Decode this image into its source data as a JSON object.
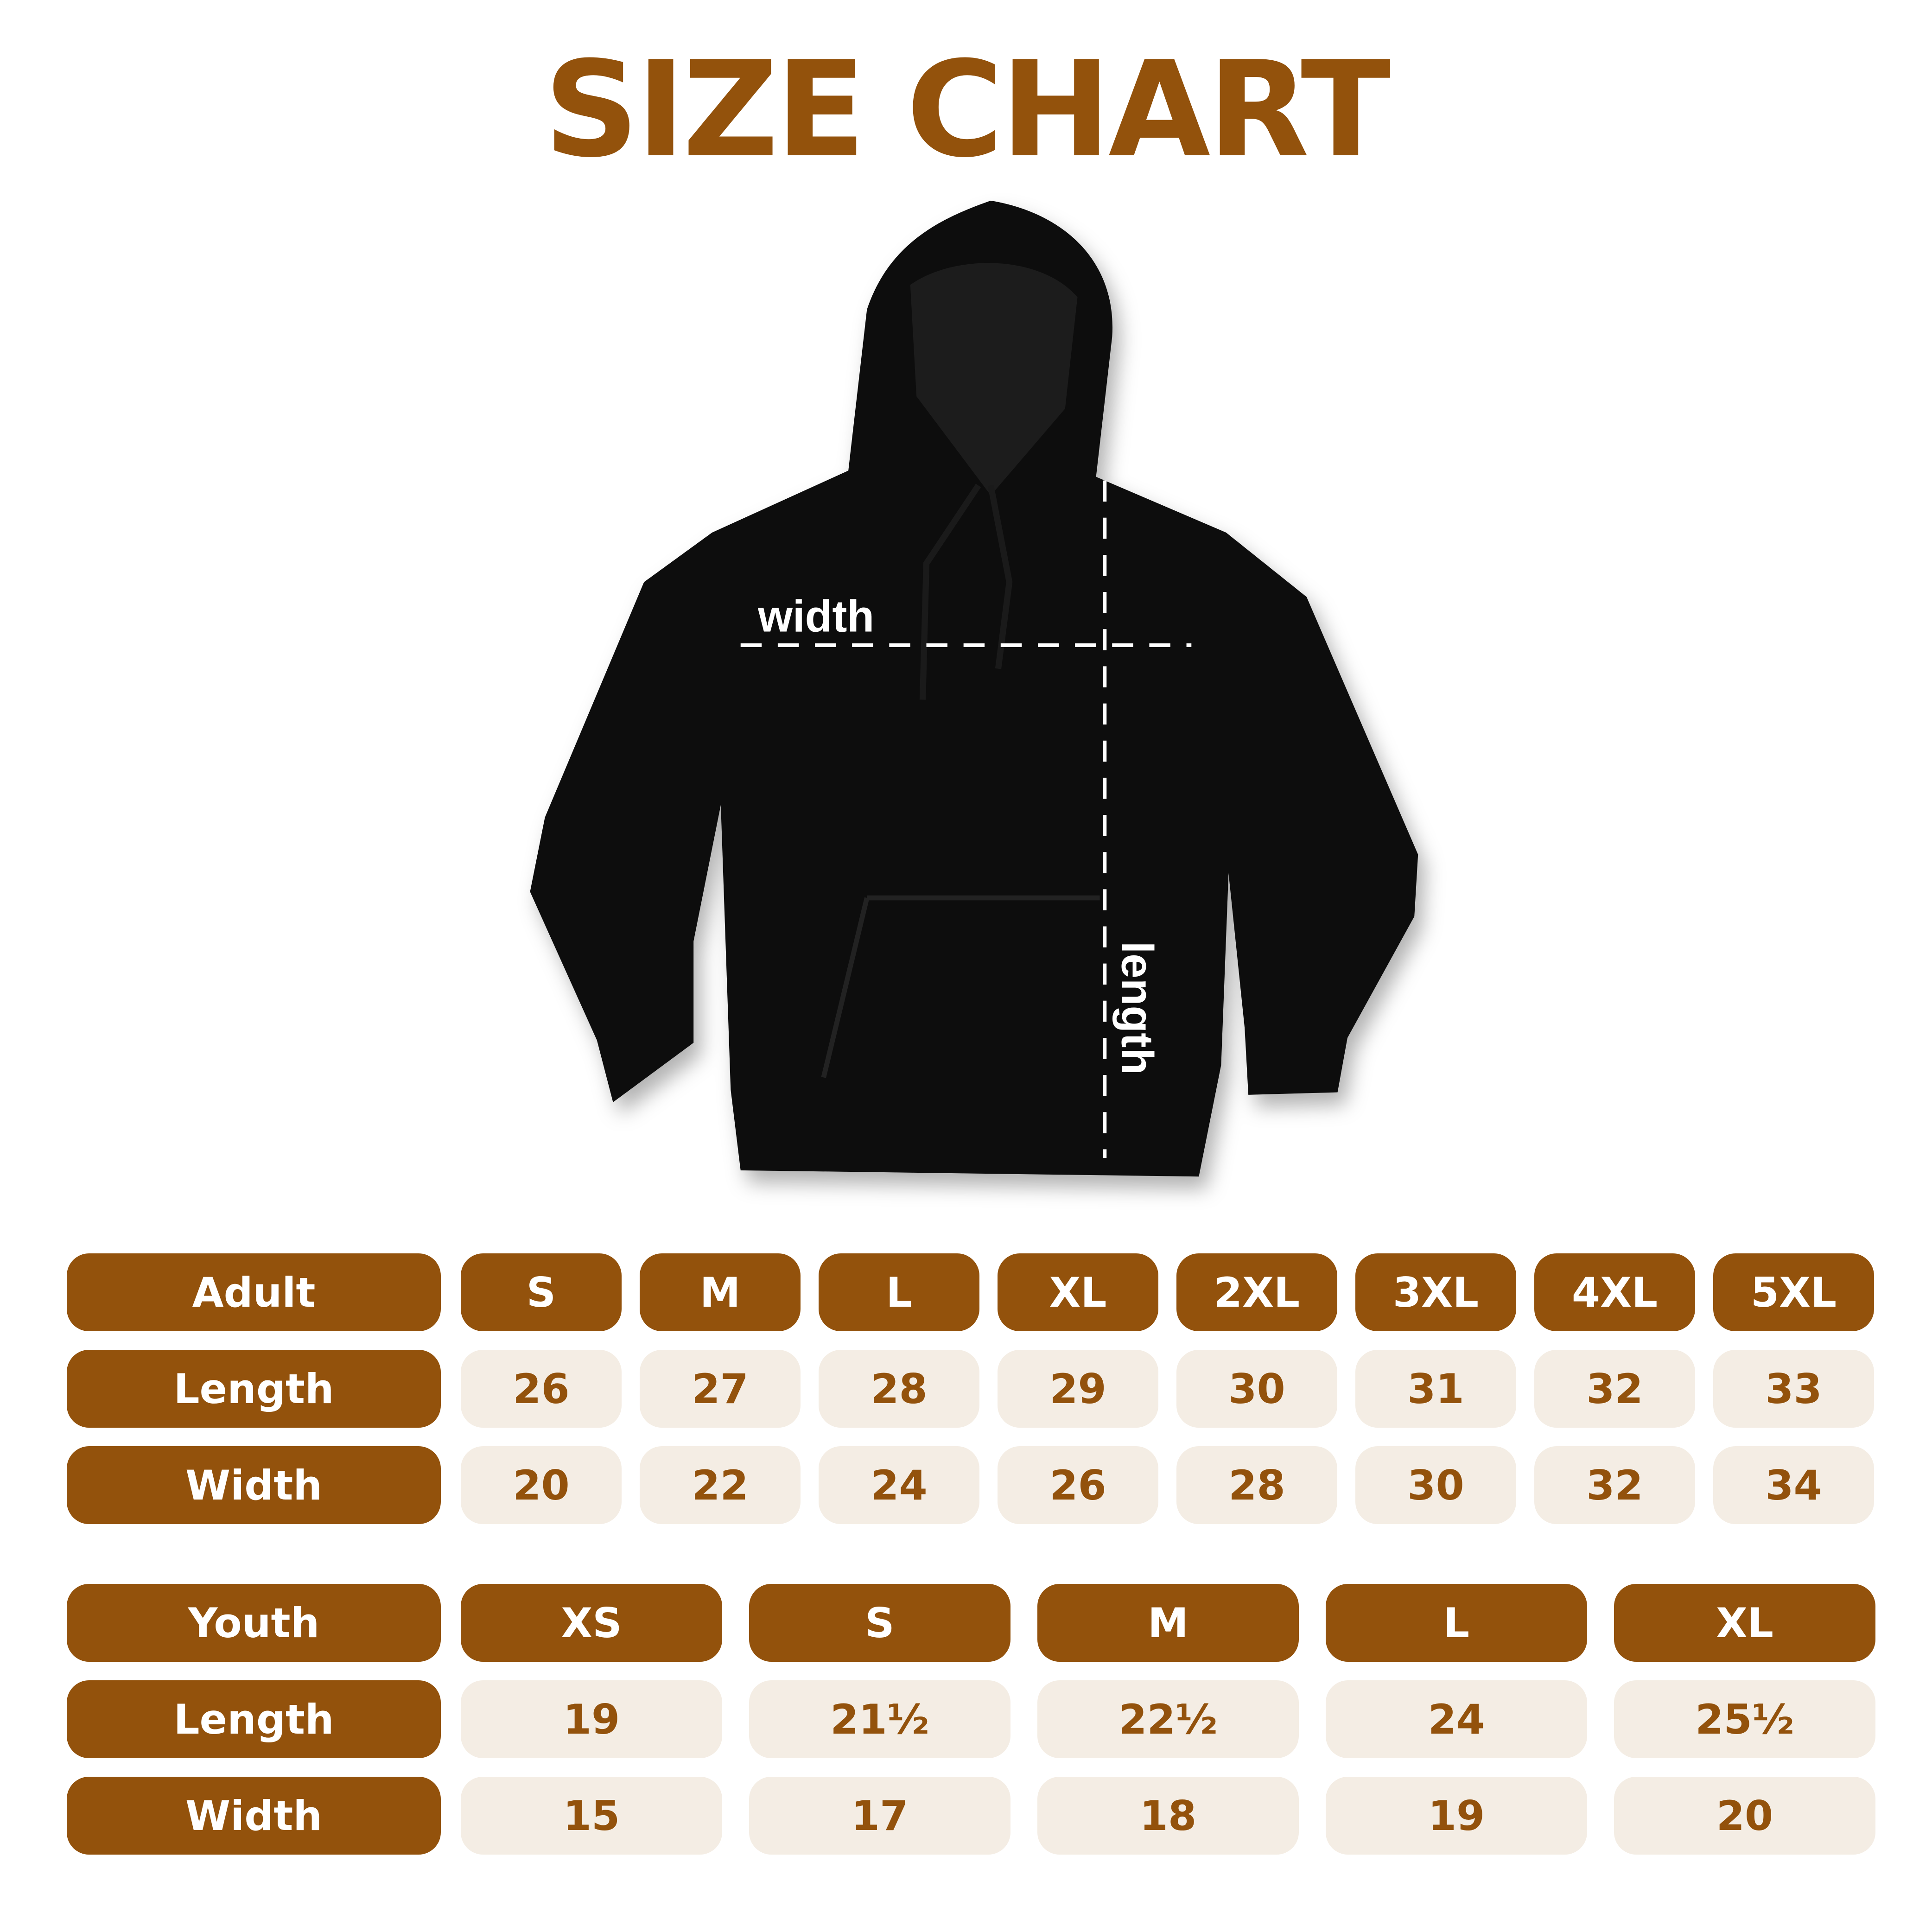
{
  "title": "SIZE CHART",
  "diagram": {
    "width_label": "width",
    "length_label": "length"
  },
  "colors": {
    "brand": "#93520c",
    "cell_bg": "#f4ede4",
    "garment": "#0a0a0a"
  },
  "adult": {
    "header": "Adult",
    "sizes": [
      "S",
      "M",
      "L",
      "XL",
      "2XL",
      "3XL",
      "4XL",
      "5XL"
    ],
    "rows": [
      {
        "label": "Length",
        "values": [
          "26",
          "27",
          "28",
          "29",
          "30",
          "31",
          "32",
          "33"
        ]
      },
      {
        "label": "Width",
        "values": [
          "20",
          "22",
          "24",
          "26",
          "28",
          "30",
          "32",
          "34"
        ]
      }
    ]
  },
  "youth": {
    "header": "Youth",
    "sizes": [
      "XS",
      "S",
      "M",
      "L",
      "XL"
    ],
    "rows": [
      {
        "label": "Length",
        "values": [
          "19",
          "21½",
          "22½",
          "24",
          "25½"
        ]
      },
      {
        "label": "Width",
        "values": [
          "15",
          "17",
          "18",
          "19",
          "20"
        ]
      }
    ]
  }
}
